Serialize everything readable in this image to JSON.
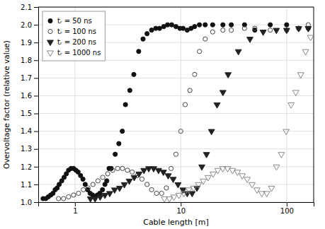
{
  "chart_data": {
    "type": "scatter",
    "xlabel": "Cable length  [m]",
    "ylabel": "Overvoltage factor (relative value)",
    "log": "x",
    "xlim": [
      0.45,
      180
    ],
    "ylim": [
      1.0,
      2.1
    ],
    "xticks": [
      1,
      10,
      100
    ],
    "yticks": [
      {
        "value": 1.0,
        "label": "1.0"
      },
      1.1,
      1.2,
      1.3,
      1.4,
      1.5,
      1.6,
      1.7,
      1.8,
      1.9,
      {
        "value": 2.0,
        "label": "2.0"
      },
      2.1
    ],
    "grid": true,
    "legend": "upper left",
    "series": [
      {
        "name": "tᵣ = 50 ns",
        "marker": "circle",
        "color": "#111111",
        "x": [
          0.5,
          0.53,
          0.56,
          0.59,
          0.62,
          0.65,
          0.68,
          0.71,
          0.75,
          0.79,
          0.83,
          0.87,
          0.92,
          0.97,
          1.02,
          1.07,
          1.13,
          1.19,
          1.25,
          1.32,
          1.39,
          1.47,
          1.55,
          1.63,
          1.72,
          1.82,
          1.92,
          2.0,
          2.1,
          2.2,
          2.4,
          2.6,
          2.8,
          3.0,
          3.3,
          3.6,
          4.0,
          4.4,
          4.8,
          5.3,
          5.8,
          6.3,
          6.9,
          7.5,
          8.2,
          9.0,
          9.8,
          10.5,
          11.5,
          12.5,
          13.5,
          15.0,
          17.0,
          20.0,
          25.0,
          30.0,
          40.0,
          50.0,
          70.0,
          100.0,
          130.0,
          160.0
        ],
        "values": [
          1.02,
          1.02,
          1.03,
          1.04,
          1.05,
          1.07,
          1.08,
          1.1,
          1.12,
          1.14,
          1.16,
          1.18,
          1.19,
          1.19,
          1.18,
          1.17,
          1.15,
          1.13,
          1.1,
          1.07,
          1.05,
          1.04,
          1.03,
          1.04,
          1.05,
          1.07,
          1.1,
          1.12,
          1.19,
          1.19,
          1.27,
          1.33,
          1.4,
          1.55,
          1.63,
          1.72,
          1.85,
          1.92,
          1.95,
          1.97,
          1.98,
          1.98,
          1.99,
          2.0,
          2.0,
          1.99,
          1.98,
          1.98,
          1.97,
          1.98,
          1.99,
          2.0,
          2.0,
          2.0,
          2.0,
          2.0,
          2.0,
          1.97,
          2.0,
          2.0,
          1.98,
          1.98
        ]
      },
      {
        "name": "tᵣ = 100 ns",
        "marker": "circle-open",
        "color": "#444444",
        "x": [
          0.7,
          0.78,
          0.87,
          0.97,
          1.08,
          1.2,
          1.33,
          1.48,
          1.65,
          1.83,
          2.04,
          2.27,
          2.53,
          2.81,
          3.13,
          3.47,
          3.87,
          4.3,
          4.8,
          5.3,
          5.9,
          6.6,
          7.3,
          8.1,
          9.0,
          10.0,
          11.0,
          12.2,
          13.5,
          15.0,
          17.0,
          20.0,
          25.0,
          30.0,
          40.0,
          50.0,
          70.0,
          100.0,
          130.0,
          160.0
        ],
        "values": [
          1.02,
          1.02,
          1.03,
          1.04,
          1.05,
          1.07,
          1.08,
          1.1,
          1.12,
          1.14,
          1.16,
          1.18,
          1.19,
          1.19,
          1.18,
          1.17,
          1.15,
          1.13,
          1.1,
          1.07,
          1.05,
          1.05,
          1.08,
          1.19,
          1.27,
          1.4,
          1.55,
          1.63,
          1.72,
          1.85,
          1.92,
          1.96,
          1.97,
          1.97,
          1.98,
          1.98,
          1.97,
          1.97,
          1.98,
          2.0
        ]
      },
      {
        "name": "tᵣ = 200 ns",
        "marker": "triangle-down",
        "color": "#222222",
        "x": [
          1.4,
          1.55,
          1.73,
          1.92,
          2.13,
          2.37,
          2.64,
          2.93,
          3.26,
          3.63,
          4.03,
          4.48,
          4.98,
          5.54,
          6.16,
          6.85,
          7.61,
          8.47,
          9.42,
          10.5,
          11.5,
          12.8,
          14.2,
          15.8,
          17.5,
          19.5,
          22.0,
          25.0,
          28.0,
          35.0,
          45.0,
          60.0,
          80.0,
          100.0,
          130.0,
          160.0
        ],
        "values": [
          1.02,
          1.02,
          1.03,
          1.04,
          1.05,
          1.07,
          1.08,
          1.1,
          1.12,
          1.14,
          1.16,
          1.18,
          1.19,
          1.19,
          1.18,
          1.17,
          1.15,
          1.13,
          1.1,
          1.07,
          1.05,
          1.05,
          1.08,
          1.2,
          1.27,
          1.4,
          1.55,
          1.62,
          1.72,
          1.85,
          1.92,
          1.96,
          1.97,
          1.97,
          1.98,
          1.98
        ]
      },
      {
        "name": "tᵣ = 1000 ns",
        "marker": "triangle-down-open",
        "color": "#888888",
        "x": [
          7.0,
          7.8,
          8.6,
          9.6,
          10.7,
          11.9,
          13.2,
          14.7,
          16.3,
          18.1,
          20.2,
          22.4,
          24.9,
          27.7,
          30.8,
          34.3,
          38.1,
          42.4,
          47.1,
          52.4,
          58.3,
          64.8,
          72.0,
          80.1,
          89.1,
          99.0,
          110.0,
          122.0,
          136.0,
          151.0,
          168.0
        ],
        "values": [
          1.02,
          1.02,
          1.03,
          1.04,
          1.05,
          1.07,
          1.08,
          1.1,
          1.12,
          1.14,
          1.16,
          1.18,
          1.19,
          1.19,
          1.18,
          1.17,
          1.15,
          1.13,
          1.1,
          1.07,
          1.05,
          1.05,
          1.08,
          1.2,
          1.27,
          1.4,
          1.55,
          1.62,
          1.72,
          1.85,
          1.93
        ]
      }
    ]
  }
}
